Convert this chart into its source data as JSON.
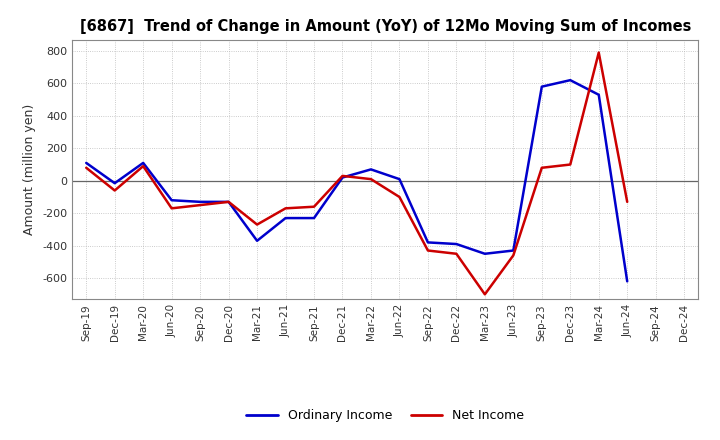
{
  "title": "[6867]  Trend of Change in Amount (YoY) of 12Mo Moving Sum of Incomes",
  "ylabel": "Amount (million yen)",
  "x_labels": [
    "Sep-19",
    "Dec-19",
    "Mar-20",
    "Jun-20",
    "Sep-20",
    "Dec-20",
    "Mar-21",
    "Jun-21",
    "Sep-21",
    "Dec-21",
    "Mar-22",
    "Jun-22",
    "Sep-22",
    "Dec-22",
    "Mar-23",
    "Jun-23",
    "Sep-23",
    "Dec-23",
    "Mar-24",
    "Jun-24",
    "Sep-24",
    "Dec-24"
  ],
  "ordinary_income": [
    110,
    -15,
    110,
    -120,
    -130,
    -130,
    -370,
    -230,
    -230,
    20,
    70,
    10,
    -380,
    -390,
    -450,
    -430,
    580,
    620,
    530,
    -620,
    null,
    null
  ],
  "net_income": [
    80,
    -60,
    90,
    -170,
    -150,
    -130,
    -270,
    -170,
    -160,
    30,
    10,
    -100,
    -430,
    -450,
    -700,
    -460,
    80,
    100,
    790,
    -130,
    null,
    null
  ],
  "ylim": [
    -730,
    870
  ],
  "yticks": [
    -600,
    -400,
    -200,
    0,
    200,
    400,
    600,
    800
  ],
  "line_color_ordinary": "#0000cc",
  "line_color_net": "#cc0000",
  "background_color": "#ffffff",
  "grid_color": "#bbbbbb",
  "legend_ordinary": "Ordinary Income",
  "legend_net": "Net Income"
}
